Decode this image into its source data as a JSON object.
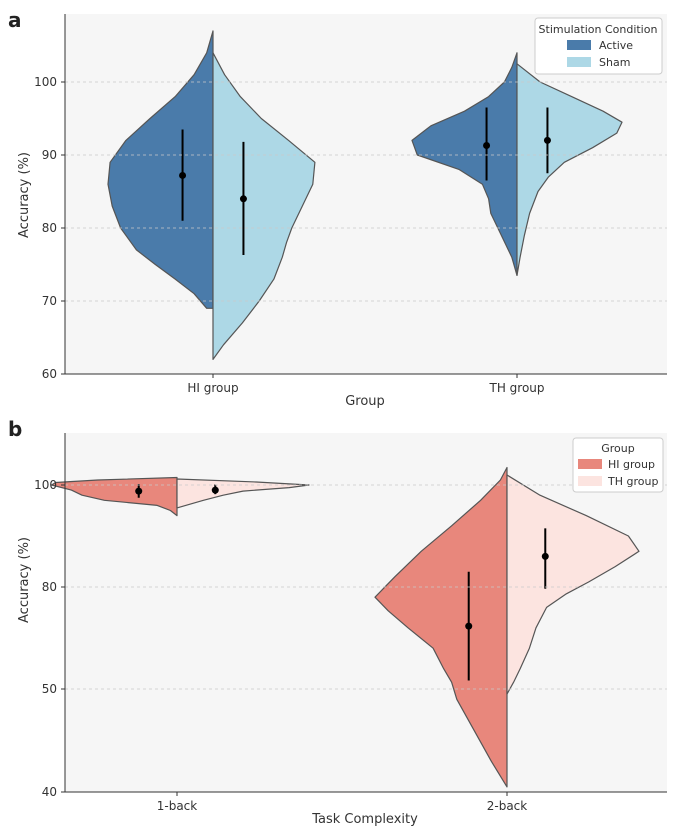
{
  "chart_data": [
    {
      "panel_label": "a",
      "type": "violin",
      "split": true,
      "xlabel": "Group",
      "ylabel": "Accuracy (%)",
      "ylim": [
        60,
        109
      ],
      "yticks": [
        60,
        70,
        80,
        90,
        100
      ],
      "ytick_labels": [
        "60",
        "70",
        "80",
        "90",
        "100"
      ],
      "categories": [
        "HI group",
        "TH group"
      ],
      "legend": {
        "title": "Stimulation Condition",
        "placement": "top-right"
      },
      "series": [
        {
          "name": "Active",
          "color": "#4a7baa",
          "groups": [
            {
              "category": "HI group",
              "min": 69,
              "max": 107,
              "mean": 87.2,
              "ci": [
                81,
                93.5
              ],
              "profile": [
                [
                  69,
                  0.06
                ],
                [
                  71,
                  0.18
                ],
                [
                  73,
                  0.36
                ],
                [
                  75,
                  0.55
                ],
                [
                  77,
                  0.73
                ],
                [
                  80,
                  0.88
                ],
                [
                  83,
                  0.96
                ],
                [
                  86,
                  1.0
                ],
                [
                  89,
                  0.98
                ],
                [
                  92,
                  0.83
                ],
                [
                  95,
                  0.6
                ],
                [
                  98,
                  0.36
                ],
                [
                  101,
                  0.18
                ],
                [
                  104,
                  0.06
                ],
                [
                  107,
                  0.0
                ]
              ]
            },
            {
              "category": "TH group",
              "min": 73.5,
              "max": 104,
              "mean": 91.3,
              "ci": [
                86.5,
                96.5
              ],
              "profile": [
                [
                  73.5,
                  0.0
                ],
                [
                  76,
                  0.05
                ],
                [
                  79,
                  0.15
                ],
                [
                  82,
                  0.25
                ],
                [
                  84,
                  0.27
                ],
                [
                  86,
                  0.33
                ],
                [
                  88,
                  0.55
                ],
                [
                  90,
                  0.95
                ],
                [
                  92,
                  1.0
                ],
                [
                  94,
                  0.82
                ],
                [
                  96,
                  0.5
                ],
                [
                  98,
                  0.27
                ],
                [
                  100,
                  0.12
                ],
                [
                  102,
                  0.05
                ],
                [
                  104,
                  0.0
                ]
              ]
            }
          ]
        },
        {
          "name": "Sham",
          "color": "#add8e6",
          "groups": [
            {
              "category": "HI group",
              "min": 62,
              "max": 104,
              "mean": 84.0,
              "ci": [
                76.3,
                91.8
              ],
              "profile": [
                [
                  62,
                  0.0
                ],
                [
                  64,
                  0.1
                ],
                [
                  67,
                  0.28
                ],
                [
                  70,
                  0.44
                ],
                [
                  73,
                  0.58
                ],
                [
                  76,
                  0.66
                ],
                [
                  78,
                  0.7
                ],
                [
                  80,
                  0.75
                ],
                [
                  83,
                  0.85
                ],
                [
                  86,
                  0.95
                ],
                [
                  89,
                  0.97
                ],
                [
                  92,
                  0.72
                ],
                [
                  95,
                  0.46
                ],
                [
                  98,
                  0.26
                ],
                [
                  101,
                  0.11
                ],
                [
                  104,
                  0.0
                ]
              ]
            },
            {
              "category": "TH group",
              "min": 73.5,
              "max": 102.5,
              "mean": 92.0,
              "ci": [
                87.5,
                96.5
              ],
              "profile": [
                [
                  73.5,
                  0.0
                ],
                [
                  76,
                  0.03
                ],
                [
                  79,
                  0.07
                ],
                [
                  82,
                  0.12
                ],
                [
                  85,
                  0.2
                ],
                [
                  87,
                  0.3
                ],
                [
                  89,
                  0.45
                ],
                [
                  91,
                  0.72
                ],
                [
                  93,
                  0.95
                ],
                [
                  94.5,
                  1.0
                ],
                [
                  96,
                  0.82
                ],
                [
                  98,
                  0.52
                ],
                [
                  100,
                  0.22
                ],
                [
                  102.5,
                  0.0
                ]
              ]
            }
          ]
        }
      ]
    },
    {
      "panel_label": "b",
      "type": "violin",
      "split": true,
      "xlabel": "Task Complexity",
      "ylabel": "Accuracy (%)",
      "yticks": [
        40,
        50,
        80,
        100
      ],
      "ytick_labels": [
        "40",
        "50",
        "80",
        "100"
      ],
      "categories": [
        "1-back",
        "2-back"
      ],
      "legend": {
        "title": "Group",
        "placement": "top-right"
      },
      "series": [
        {
          "name": "HI group",
          "color": "#e8877c",
          "groups": [
            {
              "category": "1-back",
              "min": 94,
              "max": 101.5,
              "mean": 98.8,
              "ci": [
                97.5,
                100.2
              ],
              "profile": [
                [
                  94,
                  0.0
                ],
                [
                  95,
                  0.05
                ],
                [
                  96,
                  0.15
                ],
                [
                  97,
                  0.55
                ],
                [
                  98,
                  0.72
                ],
                [
                  99,
                  0.8
                ],
                [
                  100,
                  0.95
                ],
                [
                  100.5,
                  0.92
                ],
                [
                  101,
                  0.6
                ],
                [
                  101.5,
                  0.0
                ]
              ]
            },
            {
              "category": "2-back",
              "min": 40.5,
              "max": 103.5,
              "mean": 68.5,
              "ci": [
                52.5,
                83.0
              ],
              "profile": [
                [
                  40.5,
                  0.0
                ],
                [
                  43,
                  0.12
                ],
                [
                  46,
                  0.25
                ],
                [
                  49,
                  0.38
                ],
                [
                  52,
                  0.42
                ],
                [
                  56,
                  0.48
                ],
                [
                  62,
                  0.56
                ],
                [
                  68,
                  0.75
                ],
                [
                  73,
                  0.9
                ],
                [
                  77,
                  1.0
                ],
                [
                  82,
                  0.85
                ],
                [
                  87,
                  0.65
                ],
                [
                  92,
                  0.42
                ],
                [
                  97,
                  0.2
                ],
                [
                  101,
                  0.05
                ],
                [
                  103.5,
                  0.0
                ]
              ]
            }
          ]
        },
        {
          "name": "TH group",
          "color": "#fce4e0",
          "groups": [
            {
              "category": "2-back",
              "min": 49.5,
              "max": 102,
              "mean": 86.0,
              "ci": [
                79.5,
                91.5
              ],
              "profile": [
                [
                  49.5,
                  0.0
                ],
                [
                  52,
                  0.05
                ],
                [
                  56,
                  0.1
                ],
                [
                  62,
                  0.17
                ],
                [
                  68,
                  0.22
                ],
                [
                  74,
                  0.3
                ],
                [
                  78,
                  0.45
                ],
                [
                  81,
                  0.62
                ],
                [
                  84,
                  0.82
                ],
                [
                  87,
                  1.0
                ],
                [
                  90,
                  0.92
                ],
                [
                  94,
                  0.6
                ],
                [
                  98,
                  0.25
                ],
                [
                  102,
                  0.0
                ]
              ]
            },
            {
              "category": "1-back",
              "min": 95.5,
              "max": 101.2,
              "mean": 99.0,
              "ci": [
                98.2,
                100.1
              ],
              "profile": [
                [
                  95.5,
                  0.0
                ],
                [
                  97,
                  0.2
                ],
                [
                  98,
                  0.35
                ],
                [
                  98.8,
                  0.5
                ],
                [
                  99.5,
                  0.85
                ],
                [
                  100,
                  1.0
                ],
                [
                  100.6,
                  0.6
                ],
                [
                  101.2,
                  0.0
                ]
              ]
            }
          ]
        }
      ]
    }
  ]
}
